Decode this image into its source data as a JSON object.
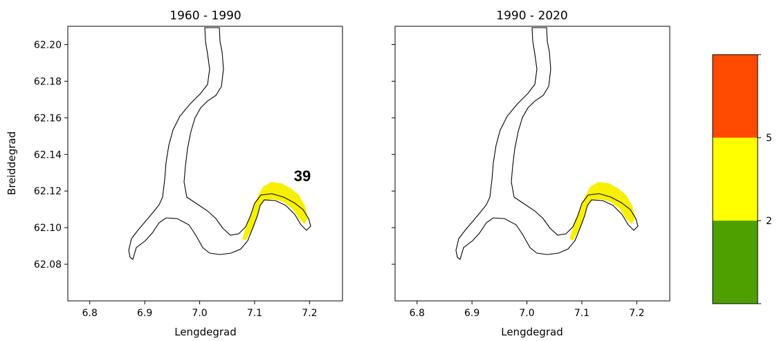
{
  "colors": {
    "low": "#4ea000",
    "mid": "#ffff00",
    "high": "#ff4a00",
    "fjord_highlight": "#f7f000",
    "outline": "#000000"
  },
  "panels": [
    {
      "title": "1960 - 1990",
      "xlabel": "Lengdegrad",
      "ylabel": "Breiddegrad",
      "annotation": "39"
    },
    {
      "title": "1990 - 2020",
      "xlabel": "Lengdegrad",
      "ylabel": "",
      "annotation": ""
    }
  ],
  "x_ticks": [
    "6.8",
    "6.9",
    "7.0",
    "7.1",
    "7.2"
  ],
  "y_ticks": [
    "62.20",
    "62.18",
    "62.16",
    "62.14",
    "62.12",
    "62.10",
    "62.08"
  ],
  "colorbar": {
    "ticks": [
      "5",
      "2"
    ],
    "bands": [
      {
        "level": "high",
        "color": "#ff4a00"
      },
      {
        "level": "mid",
        "color": "#ffff00"
      },
      {
        "level": "low",
        "color": "#4ea000"
      }
    ]
  },
  "chart_data": {
    "type": "map",
    "xlim": [
      6.76,
      7.26
    ],
    "ylim": [
      62.06,
      62.21
    ],
    "x_ticks": [
      6.8,
      6.9,
      7.0,
      7.1,
      7.2
    ],
    "y_ticks": [
      62.2,
      62.18,
      62.16,
      62.14,
      62.12,
      62.1,
      62.08
    ],
    "colorbar_boundaries": [
      2,
      5
    ]
  }
}
